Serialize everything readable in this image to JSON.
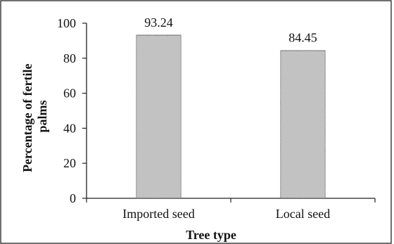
{
  "chart_data": {
    "type": "bar",
    "categories": [
      "Imported seed",
      "Local seed"
    ],
    "values": [
      93.24,
      84.45
    ],
    "data_labels": [
      "93.24",
      "84.45"
    ],
    "xlabel": "Tree type",
    "ylabel_lines": [
      "Percentage of fertile",
      "palms"
    ],
    "ylim": [
      0,
      100
    ],
    "yticks": [
      "0",
      "20",
      "40",
      "60",
      "80",
      "100"
    ],
    "grid": false,
    "legend": "none",
    "bar_color": "#c8c8c8"
  }
}
